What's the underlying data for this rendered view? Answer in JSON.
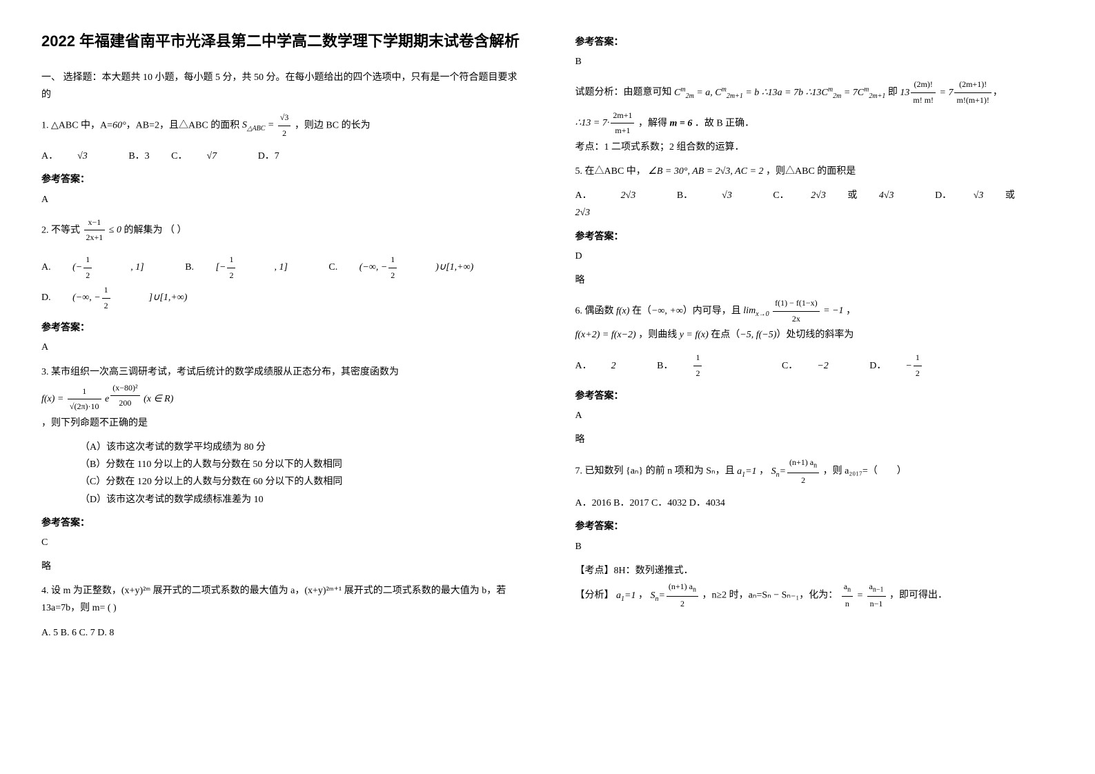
{
  "title": "2022 年福建省南平市光泽县第二中学高二数学理下学期期末试卷含解析",
  "section1_head": "一、 选择题：本大题共 10 小题，每小题 5 分，共 50 分。在每小题给出的四个选项中，只有是一个符合题目要求的",
  "answer_label": "参考答案：",
  "omit": "略",
  "q1_text_a": "1. △ABC 中，A=",
  "q1_text_b": "，AB=2，且△ABC 的面积",
  "q1_text_c": "，则边 BC 的长为",
  "q1_optA": "A．",
  "q1_optB": "B．3",
  "q1_optC": "C．",
  "q1_optD": "D．7",
  "q1_ans": "A",
  "q2_text_a": "2. 不等式",
  "q2_text_b": " 的解集为        （     ）",
  "q2_optA_pre": "A.",
  "q2_optB_pre": "B.",
  "q2_optC_pre": "C.",
  "q2_optD_pre": "D.",
  "q2_ans": "A",
  "q3_text": "3. 某市组织一次高三调研考试，考试后统计的数学成绩服从正态分布，其密度函数为",
  "q3_tail": "，则下列命题不正确的是",
  "q3_optA": "（A）该市这次考试的数学平均成绩为 80 分",
  "q3_optB": "（B）分数在 110 分以上的人数与分数在 50 分以下的人数相同",
  "q3_optC": "（C）分数在 120 分以上的人数与分数在 60 分以下的人数相同",
  "q3_optD": "（D）该市这次考试的数学成绩标准差为 10",
  "q3_ans": "C",
  "q3_omit": "略",
  "q4_text": "4. 设 m 为正整数，(x+y)²ᵐ 展开式的二项式系数的最大值为 a，(x+y)²ᵐ⁺¹ 展开式的二项式系数的最大值为 b，若 13a=7b，则 m= ( )",
  "q4_opts": "A. 5    B. 6    C. 7    D. 8",
  "q4_ans": "B",
  "q4_expl_a": "试题分析：由题意可知",
  "q4_expl_b": "即",
  "q4_expl_c": "，解得",
  "q4_expl_d": "．故 B 正确．",
  "q4_topic": "考点：1 二项式系数；2 组合数的运算．",
  "q5_text_a": "5. 在△ABC 中，",
  "q5_text_b": "，则△ABC 的面积是",
  "q5_optA": "A．",
  "q5_optB": "B．",
  "q5_optC": "C．",
  "q5_or": "或",
  "q5_optD": "D．",
  "q5_ans": "D",
  "q5_omit": "略",
  "q6_text_a": "6. 偶函数",
  "q6_text_b": "在（",
  "q6_text_c": "）内可导，且",
  "q6_text_d": "，",
  "q6_text_e": "，则曲线",
  "q6_text_f": "在点（",
  "q6_text_g": "）处切线的斜率为",
  "q6_optA": "A．",
  "q6_optB": "B．",
  "q6_optC": "C．",
  "q6_optD": "D．",
  "q6_ans": "A",
  "q6_omit": "略",
  "q7_text_a": "7. 已知数列 {aₙ} 的前 n 项和为 Sₙ，且",
  "q7_text_b": "，",
  "q7_text_c": "，则 a₂₀₁₇=（　　）",
  "q7_opts": "A．2016     B．2017    C．4032     D．4034",
  "q7_ans": "B",
  "q7_topic": "【考点】8H：数列递推式．",
  "q7_analysis_a": "【分析】",
  "q7_analysis_b": "，",
  "q7_analysis_c": "，n≥2 时，aₙ=Sₙ − Sₙ₋₁，化为：",
  "q7_analysis_d": "，即可得出．"
}
